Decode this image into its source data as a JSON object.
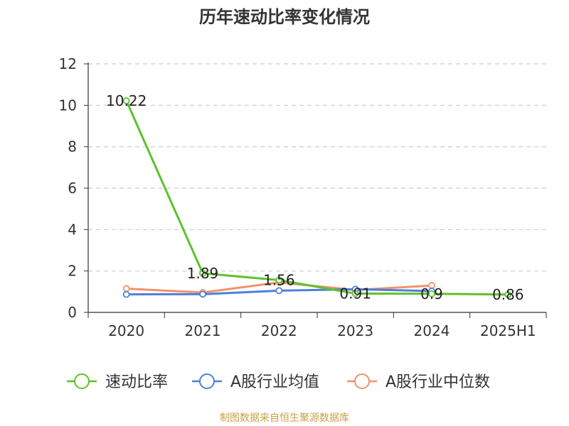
{
  "title": "历年速动比率变化情况",
  "source": "制图数据来自恒生聚源数据库",
  "chart_data": {
    "type": "line",
    "title": "历年速动比率变化情况",
    "categories": [
      "2020",
      "2021",
      "2022",
      "2023",
      "2024",
      "2025H1"
    ],
    "ylim": [
      0,
      12
    ],
    "yticks": [
      0,
      2,
      4,
      6,
      8,
      10,
      12
    ],
    "grid": true,
    "legend_position": "bottom",
    "series": [
      {
        "name": "速动比率",
        "color": "#5ec12d",
        "values": [
          10.22,
          1.89,
          1.56,
          0.91,
          0.9,
          0.86
        ],
        "labels": [
          "10.22",
          "1.89",
          "1.56",
          "0.91",
          "0.9",
          "0.86"
        ]
      },
      {
        "name": "A股行业均值",
        "color": "#4f7fdc",
        "values": [
          0.87,
          0.88,
          1.05,
          1.12,
          1.03,
          null
        ]
      },
      {
        "name": "A股行业中位数",
        "color": "#f2926b",
        "values": [
          1.15,
          0.96,
          1.45,
          1.08,
          1.3,
          null
        ]
      }
    ]
  }
}
